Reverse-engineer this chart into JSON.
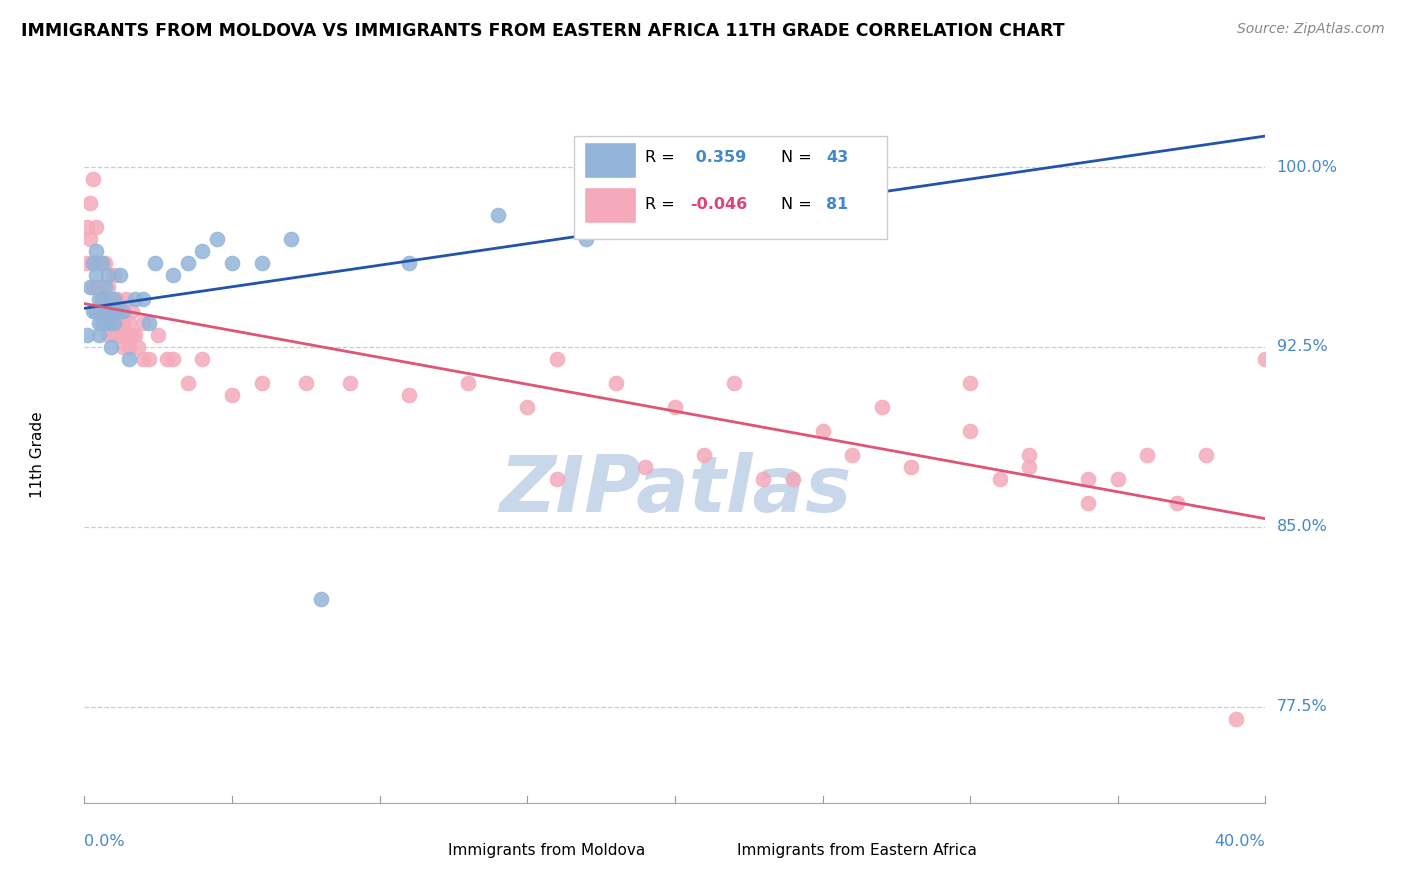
{
  "title": "IMMIGRANTS FROM MOLDOVA VS IMMIGRANTS FROM EASTERN AFRICA 11TH GRADE CORRELATION CHART",
  "source_text": "Source: ZipAtlas.com",
  "ylabel": "11th Grade",
  "y_ticks": [
    0.775,
    0.85,
    0.925,
    1.0
  ],
  "y_tick_labels": [
    "77.5%",
    "85.0%",
    "92.5%",
    "100.0%"
  ],
  "x_min": 0.0,
  "x_max": 0.4,
  "y_min": 0.735,
  "y_max": 1.025,
  "legend_r1_label": "R = ",
  "legend_r1_val": " 0.359",
  "legend_n1_label": "N = ",
  "legend_n1_val": "43",
  "legend_r2_label": "R = ",
  "legend_r2_val": "-0.046",
  "legend_n2_label": "N = ",
  "legend_n2_val": "81",
  "blue_color": "#92B4D8",
  "pink_color": "#F4AABB",
  "trendline_blue": "#2255AA",
  "trendline_pink": "#DD5577",
  "blue_x": [
    0.001,
    0.002,
    0.003,
    0.003,
    0.004,
    0.004,
    0.004,
    0.005,
    0.005,
    0.005,
    0.006,
    0.006,
    0.006,
    0.007,
    0.007,
    0.007,
    0.008,
    0.008,
    0.009,
    0.009,
    0.01,
    0.01,
    0.011,
    0.012,
    0.013,
    0.015,
    0.017,
    0.02,
    0.022,
    0.024,
    0.03,
    0.035,
    0.04,
    0.045,
    0.05,
    0.06,
    0.07,
    0.08,
    0.11,
    0.14,
    0.17,
    0.19,
    0.26
  ],
  "blue_y": [
    0.93,
    0.95,
    0.94,
    0.96,
    0.94,
    0.955,
    0.965,
    0.93,
    0.935,
    0.945,
    0.935,
    0.945,
    0.96,
    0.935,
    0.94,
    0.95,
    0.935,
    0.955,
    0.925,
    0.94,
    0.935,
    0.945,
    0.94,
    0.955,
    0.94,
    0.92,
    0.945,
    0.945,
    0.935,
    0.96,
    0.955,
    0.96,
    0.965,
    0.97,
    0.96,
    0.96,
    0.97,
    0.82,
    0.96,
    0.98,
    0.97,
    0.985,
    1.0
  ],
  "pink_x": [
    0.001,
    0.001,
    0.002,
    0.002,
    0.003,
    0.003,
    0.003,
    0.004,
    0.004,
    0.004,
    0.005,
    0.005,
    0.005,
    0.006,
    0.006,
    0.007,
    0.007,
    0.007,
    0.008,
    0.008,
    0.008,
    0.009,
    0.009,
    0.01,
    0.01,
    0.01,
    0.011,
    0.011,
    0.012,
    0.012,
    0.013,
    0.013,
    0.014,
    0.014,
    0.015,
    0.015,
    0.016,
    0.016,
    0.017,
    0.018,
    0.02,
    0.02,
    0.022,
    0.025,
    0.028,
    0.03,
    0.035,
    0.04,
    0.05,
    0.06,
    0.075,
    0.09,
    0.11,
    0.13,
    0.15,
    0.16,
    0.18,
    0.2,
    0.22,
    0.24,
    0.25,
    0.27,
    0.3,
    0.31,
    0.32,
    0.34,
    0.36,
    0.38,
    0.4,
    0.16,
    0.19,
    0.21,
    0.23,
    0.26,
    0.28,
    0.3,
    0.32,
    0.34,
    0.35,
    0.37,
    0.39
  ],
  "pink_y": [
    0.96,
    0.975,
    0.97,
    0.985,
    0.95,
    0.96,
    0.995,
    0.95,
    0.96,
    0.975,
    0.94,
    0.95,
    0.96,
    0.94,
    0.95,
    0.94,
    0.945,
    0.96,
    0.93,
    0.94,
    0.95,
    0.935,
    0.945,
    0.93,
    0.94,
    0.955,
    0.935,
    0.945,
    0.93,
    0.94,
    0.925,
    0.935,
    0.93,
    0.945,
    0.925,
    0.935,
    0.93,
    0.94,
    0.93,
    0.925,
    0.92,
    0.935,
    0.92,
    0.93,
    0.92,
    0.92,
    0.91,
    0.92,
    0.905,
    0.91,
    0.91,
    0.91,
    0.905,
    0.91,
    0.9,
    0.92,
    0.91,
    0.9,
    0.91,
    0.87,
    0.89,
    0.9,
    0.91,
    0.87,
    0.88,
    0.87,
    0.88,
    0.88,
    0.92,
    0.87,
    0.875,
    0.88,
    0.87,
    0.88,
    0.875,
    0.89,
    0.875,
    0.86,
    0.87,
    0.86,
    0.77
  ],
  "watermark_text": "ZIPatlas",
  "watermark_color": "#C8D8EA",
  "grid_color": "#CCCCCC",
  "background_color": "#FFFFFF"
}
